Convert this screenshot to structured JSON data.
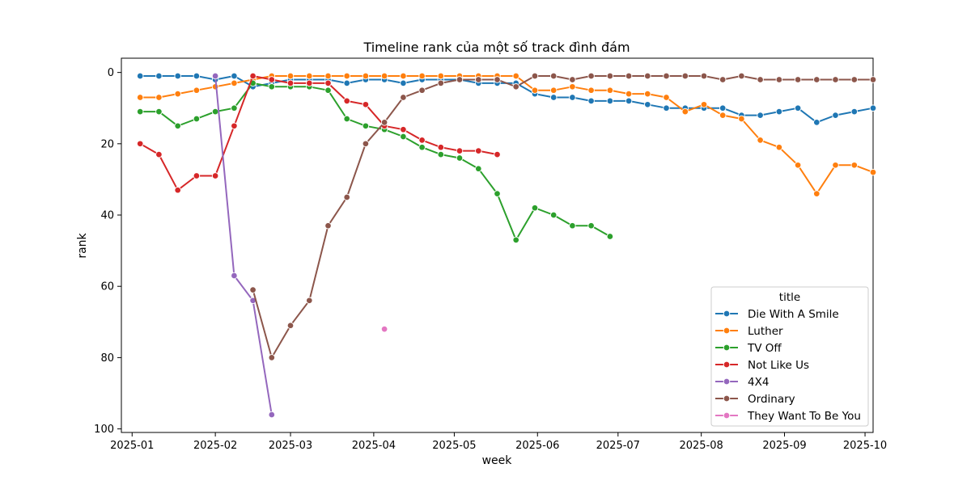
{
  "chart_data": {
    "type": "line",
    "title": "Timeline rank của một số track đình đám",
    "xlabel": "week",
    "ylabel": "rank",
    "xlim": [
      "2024-12-28",
      "2025-10-04"
    ],
    "ylim": [
      101,
      -4
    ],
    "y_inverted": true,
    "grid": false,
    "x_ticks": [
      "2025-01",
      "2025-02",
      "2025-03",
      "2025-04",
      "2025-05",
      "2025-06",
      "2025-07",
      "2025-08",
      "2025-09",
      "2025-10"
    ],
    "y_ticks": [
      0,
      20,
      40,
      60,
      80,
      100
    ],
    "legend": {
      "title": "title",
      "position": "lower-right"
    },
    "series": [
      {
        "name": "Die With A Smile",
        "color": "#1f77b4",
        "points": [
          [
            "2025-01-04",
            1
          ],
          [
            "2025-01-11",
            1
          ],
          [
            "2025-01-18",
            1
          ],
          [
            "2025-01-25",
            1
          ],
          [
            "2025-02-01",
            2
          ],
          [
            "2025-02-08",
            1
          ],
          [
            "2025-02-15",
            4
          ],
          [
            "2025-02-22",
            3
          ],
          [
            "2025-03-01",
            2
          ],
          [
            "2025-03-08",
            2
          ],
          [
            "2025-03-15",
            2
          ],
          [
            "2025-03-22",
            3
          ],
          [
            "2025-03-29",
            2
          ],
          [
            "2025-04-05",
            2
          ],
          [
            "2025-04-12",
            3
          ],
          [
            "2025-04-19",
            2
          ],
          [
            "2025-04-26",
            2
          ],
          [
            "2025-05-03",
            2
          ],
          [
            "2025-05-10",
            3
          ],
          [
            "2025-05-17",
            3
          ],
          [
            "2025-05-24",
            3
          ],
          [
            "2025-05-31",
            6
          ],
          [
            "2025-06-07",
            7
          ],
          [
            "2025-06-14",
            7
          ],
          [
            "2025-06-21",
            8
          ],
          [
            "2025-06-28",
            8
          ],
          [
            "2025-07-05",
            8
          ],
          [
            "2025-07-12",
            9
          ],
          [
            "2025-07-19",
            10
          ],
          [
            "2025-07-26",
            10
          ],
          [
            "2025-08-02",
            10
          ],
          [
            "2025-08-09",
            10
          ],
          [
            "2025-08-16",
            12
          ],
          [
            "2025-08-23",
            12
          ],
          [
            "2025-08-30",
            11
          ],
          [
            "2025-09-06",
            10
          ],
          [
            "2025-09-13",
            14
          ],
          [
            "2025-09-20",
            12
          ],
          [
            "2025-09-27",
            11
          ],
          [
            "2025-10-04",
            10
          ]
        ]
      },
      {
        "name": "Luther",
        "color": "#ff7f0e",
        "points": [
          [
            "2025-01-04",
            7
          ],
          [
            "2025-01-11",
            7
          ],
          [
            "2025-01-18",
            6
          ],
          [
            "2025-01-25",
            5
          ],
          [
            "2025-02-01",
            4
          ],
          [
            "2025-02-08",
            3
          ],
          [
            "2025-02-15",
            2
          ],
          [
            "2025-02-22",
            1
          ],
          [
            "2025-03-01",
            1
          ],
          [
            "2025-03-08",
            1
          ],
          [
            "2025-03-15",
            1
          ],
          [
            "2025-03-22",
            1
          ],
          [
            "2025-03-29",
            1
          ],
          [
            "2025-04-05",
            1
          ],
          [
            "2025-04-12",
            1
          ],
          [
            "2025-04-19",
            1
          ],
          [
            "2025-04-26",
            1
          ],
          [
            "2025-05-03",
            1
          ],
          [
            "2025-05-10",
            1
          ],
          [
            "2025-05-17",
            1
          ],
          [
            "2025-05-24",
            1
          ],
          [
            "2025-05-31",
            5
          ],
          [
            "2025-06-07",
            5
          ],
          [
            "2025-06-14",
            4
          ],
          [
            "2025-06-21",
            5
          ],
          [
            "2025-06-28",
            5
          ],
          [
            "2025-07-05",
            6
          ],
          [
            "2025-07-12",
            6
          ],
          [
            "2025-07-19",
            7
          ],
          [
            "2025-07-26",
            11
          ],
          [
            "2025-08-02",
            9
          ],
          [
            "2025-08-09",
            12
          ],
          [
            "2025-08-16",
            13
          ],
          [
            "2025-08-23",
            19
          ],
          [
            "2025-08-30",
            21
          ],
          [
            "2025-09-06",
            26
          ],
          [
            "2025-09-13",
            34
          ],
          [
            "2025-09-20",
            26
          ],
          [
            "2025-09-27",
            26
          ],
          [
            "2025-10-04",
            28
          ]
        ]
      },
      {
        "name": "TV Off",
        "color": "#2ca02c",
        "points": [
          [
            "2025-01-04",
            11
          ],
          [
            "2025-01-11",
            11
          ],
          [
            "2025-01-18",
            15
          ],
          [
            "2025-01-25",
            13
          ],
          [
            "2025-02-01",
            11
          ],
          [
            "2025-02-08",
            10
          ],
          [
            "2025-02-15",
            3
          ],
          [
            "2025-02-22",
            4
          ],
          [
            "2025-03-01",
            4
          ],
          [
            "2025-03-08",
            4
          ],
          [
            "2025-03-15",
            5
          ],
          [
            "2025-03-22",
            13
          ],
          [
            "2025-03-29",
            15
          ],
          [
            "2025-04-05",
            16
          ],
          [
            "2025-04-12",
            18
          ],
          [
            "2025-04-19",
            21
          ],
          [
            "2025-04-26",
            23
          ],
          [
            "2025-05-03",
            24
          ],
          [
            "2025-05-10",
            27
          ],
          [
            "2025-05-17",
            34
          ],
          [
            "2025-05-24",
            47
          ],
          [
            "2025-05-31",
            38
          ],
          [
            "2025-06-07",
            40
          ],
          [
            "2025-06-14",
            43
          ],
          [
            "2025-06-21",
            43
          ],
          [
            "2025-06-28",
            46
          ]
        ]
      },
      {
        "name": "Not Like Us",
        "color": "#d62728",
        "points": [
          [
            "2025-01-04",
            20
          ],
          [
            "2025-01-11",
            23
          ],
          [
            "2025-01-18",
            33
          ],
          [
            "2025-01-25",
            29
          ],
          [
            "2025-02-01",
            29
          ],
          [
            "2025-02-08",
            15
          ],
          [
            "2025-02-15",
            1
          ],
          [
            "2025-02-22",
            2
          ],
          [
            "2025-03-01",
            3
          ],
          [
            "2025-03-08",
            3
          ],
          [
            "2025-03-15",
            3
          ],
          [
            "2025-03-22",
            8
          ],
          [
            "2025-03-29",
            9
          ],
          [
            "2025-04-05",
            15
          ],
          [
            "2025-04-12",
            16
          ],
          [
            "2025-04-19",
            19
          ],
          [
            "2025-04-26",
            21
          ],
          [
            "2025-05-03",
            22
          ],
          [
            "2025-05-10",
            22
          ],
          [
            "2025-05-17",
            23
          ]
        ]
      },
      {
        "name": "4X4",
        "color": "#9467bd",
        "points": [
          [
            "2025-02-01",
            1
          ],
          [
            "2025-02-08",
            57
          ],
          [
            "2025-02-15",
            64
          ],
          [
            "2025-02-22",
            96
          ]
        ]
      },
      {
        "name": "Ordinary",
        "color": "#8c564b",
        "points": [
          [
            "2025-02-15",
            61
          ],
          [
            "2025-02-22",
            80
          ],
          [
            "2025-03-01",
            71
          ],
          [
            "2025-03-08",
            64
          ],
          [
            "2025-03-15",
            43
          ],
          [
            "2025-03-22",
            35
          ],
          [
            "2025-03-29",
            20
          ],
          [
            "2025-04-05",
            14
          ],
          [
            "2025-04-12",
            7
          ],
          [
            "2025-04-19",
            5
          ],
          [
            "2025-04-26",
            3
          ],
          [
            "2025-05-03",
            2
          ],
          [
            "2025-05-10",
            2
          ],
          [
            "2025-05-17",
            2
          ],
          [
            "2025-05-24",
            4
          ],
          [
            "2025-05-31",
            1
          ],
          [
            "2025-06-07",
            1
          ],
          [
            "2025-06-14",
            2
          ],
          [
            "2025-06-21",
            1
          ],
          [
            "2025-06-28",
            1
          ],
          [
            "2025-07-05",
            1
          ],
          [
            "2025-07-12",
            1
          ],
          [
            "2025-07-19",
            1
          ],
          [
            "2025-07-26",
            1
          ],
          [
            "2025-08-02",
            1
          ],
          [
            "2025-08-09",
            2
          ],
          [
            "2025-08-16",
            1
          ],
          [
            "2025-08-23",
            2
          ],
          [
            "2025-08-30",
            2
          ],
          [
            "2025-09-06",
            2
          ],
          [
            "2025-09-13",
            2
          ],
          [
            "2025-09-20",
            2
          ],
          [
            "2025-09-27",
            2
          ],
          [
            "2025-10-04",
            2
          ]
        ]
      },
      {
        "name": "They Want To Be You",
        "color": "#e377c2",
        "points": [
          [
            "2025-04-05",
            72
          ]
        ]
      }
    ]
  }
}
